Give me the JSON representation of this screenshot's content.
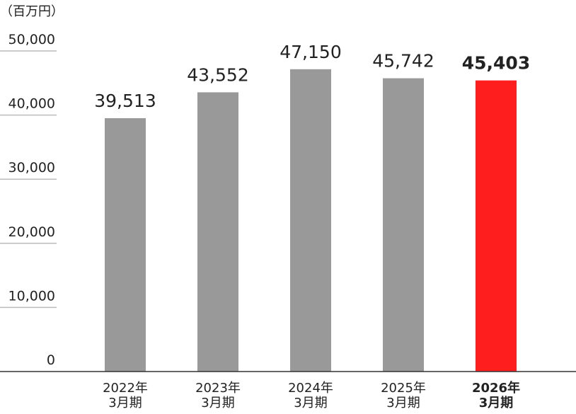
{
  "chart_data": {
    "type": "bar",
    "unit_label": "（百万円）",
    "categories": [
      "2022年\n3月期",
      "2023年\n3月期",
      "2024年\n3月期",
      "2025年\n3月期",
      "2026年\n3月期"
    ],
    "values": [
      39513,
      43552,
      47150,
      45742,
      45403
    ],
    "value_labels": [
      "39,513",
      "43,552",
      "47,150",
      "45,742",
      "45,403"
    ],
    "colors": [
      "#999999",
      "#999999",
      "#999999",
      "#999999",
      "#ff1e1e"
    ],
    "highlight": 4,
    "ylim": [
      0,
      50000
    ],
    "yticks": [
      0,
      {
        "value": 10000,
        "label": "10,000"
      },
      {
        "value": 20000,
        "label": "20,000"
      },
      {
        "value": 30000,
        "label": "30,000"
      },
      {
        "value": 40000,
        "label": "40,000"
      },
      {
        "value": 50000,
        "label": "50,000"
      }
    ]
  }
}
